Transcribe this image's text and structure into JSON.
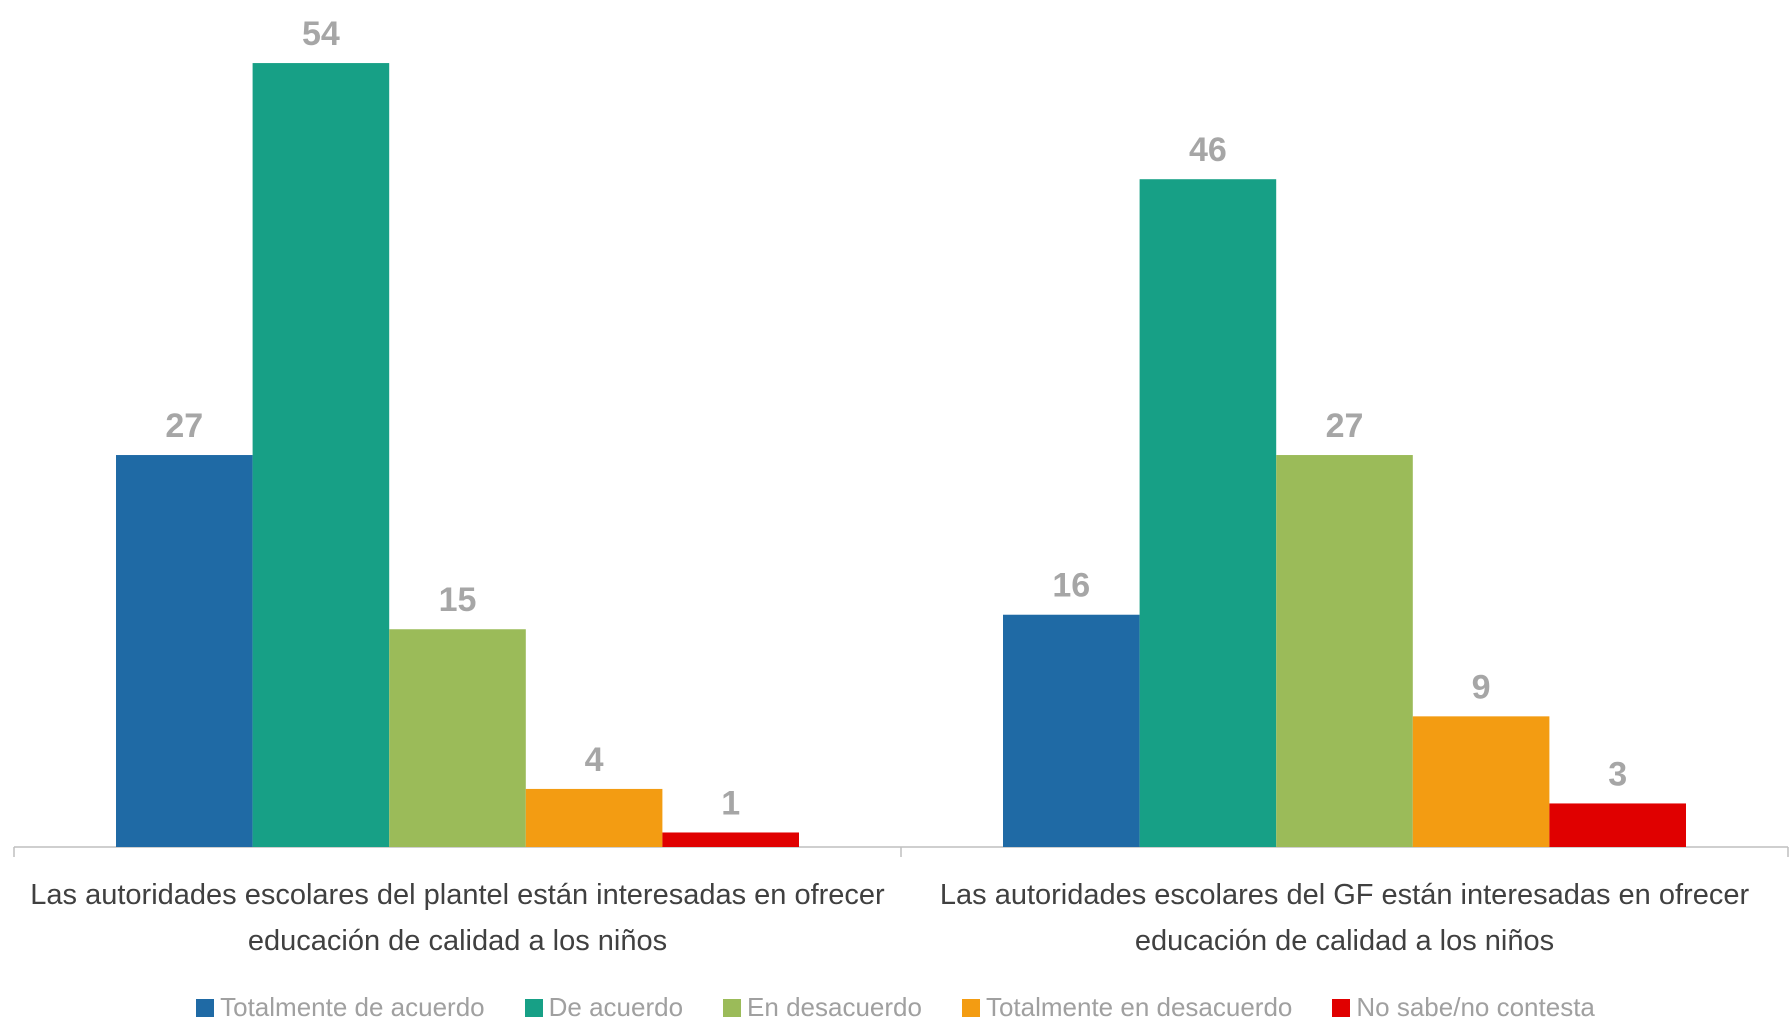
{
  "chart_data": {
    "type": "bar",
    "categories": [
      "Las autoridades escolares del plantel están interesadas en ofrecer educación de calidad a los niños",
      "Las autoridades escolares del GF están interesadas en ofrecer educación de calidad a los niños"
    ],
    "series": [
      {
        "name": "Totalmente de acuerdo",
        "color": "#1f6aa5",
        "values": [
          27,
          16
        ]
      },
      {
        "name": "De acuerdo",
        "color": "#17a086",
        "values": [
          54,
          46
        ]
      },
      {
        "name": "En desacuerdo",
        "color": "#9bbb59",
        "values": [
          15,
          27
        ]
      },
      {
        "name": "Totalmente en desacuerdo",
        "color": "#f39c12",
        "values": [
          4,
          9
        ]
      },
      {
        "name": "No sabe/no contesta",
        "color": "#e00000",
        "values": [
          1,
          3
        ]
      }
    ],
    "ylim": [
      0,
      58
    ],
    "legend": "bottom"
  }
}
